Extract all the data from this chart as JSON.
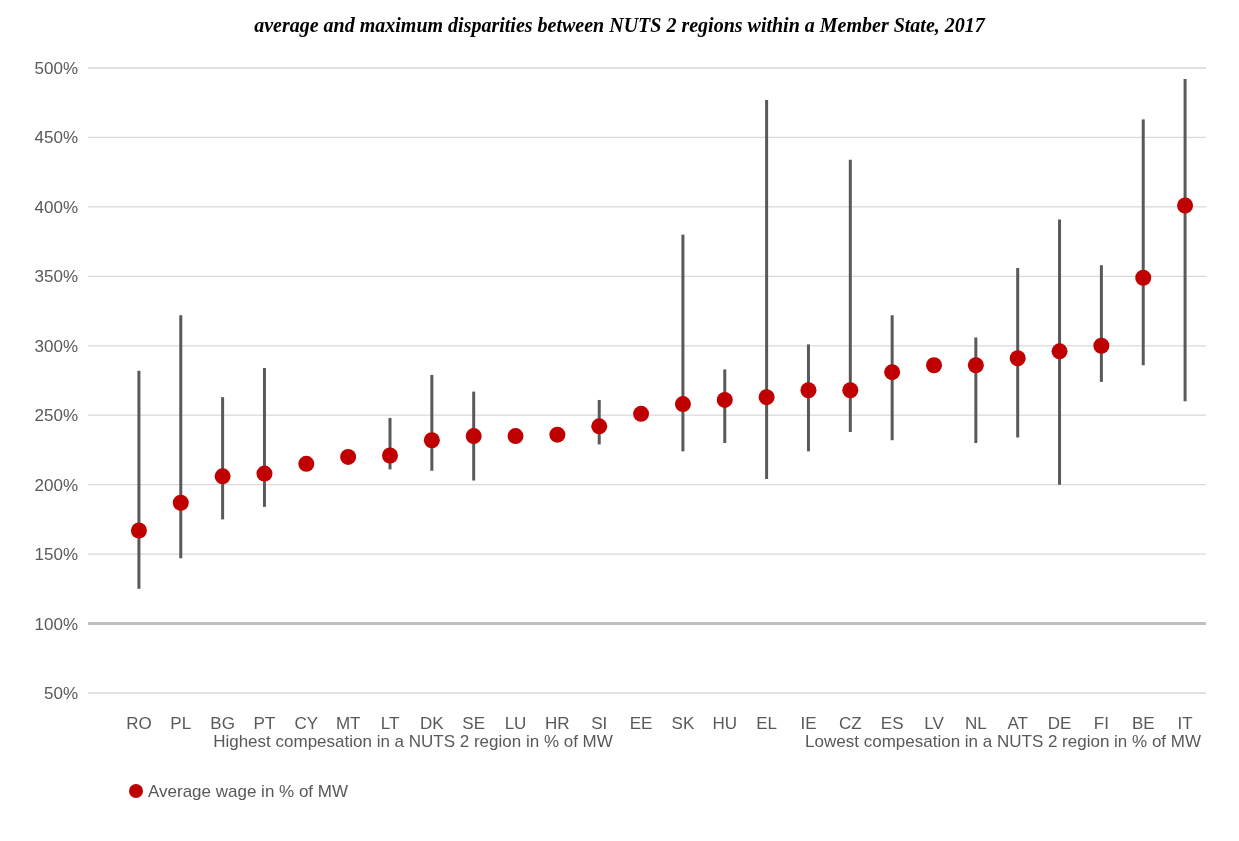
{
  "chart_data": {
    "type": "scatter",
    "title": "average and maximum disparities between NUTS 2 regions within a Member State, 2017",
    "categories": [
      "RO",
      "PL",
      "BG",
      "PT",
      "CY",
      "MT",
      "LT",
      "DK",
      "SE",
      "LU",
      "HR",
      "SI",
      "EE",
      "SK",
      "HU",
      "EL",
      "IE",
      "CZ",
      "ES",
      "LV",
      "NL",
      "AT",
      "DE",
      "FI",
      "BE",
      "IT"
    ],
    "series": [
      {
        "name": "Average wage in % of MW",
        "color": "#c00000",
        "values": [
          167,
          187,
          206,
          208,
          215,
          220,
          221,
          232,
          235,
          235,
          236,
          242,
          251,
          258,
          261,
          263,
          268,
          268,
          281,
          286,
          286,
          291,
          296,
          300,
          349,
          401
        ],
        "errors": [
          [
            125,
            282
          ],
          [
            147,
            322
          ],
          [
            175,
            263
          ],
          [
            184,
            284
          ],
          null,
          null,
          [
            211,
            248
          ],
          [
            210,
            279
          ],
          [
            203,
            267
          ],
          null,
          null,
          [
            229,
            261
          ],
          null,
          [
            224,
            380
          ],
          [
            230,
            283
          ],
          [
            204,
            477
          ],
          [
            224,
            301
          ],
          [
            238,
            434
          ],
          [
            232,
            322
          ],
          null,
          [
            230,
            306
          ],
          [
            234,
            356
          ],
          [
            200,
            391
          ],
          [
            274,
            358
          ],
          [
            286,
            463
          ],
          [
            260,
            492
          ]
        ]
      }
    ],
    "ylim": [
      50,
      500
    ],
    "yticks": [
      {
        "value": 50,
        "label": "50%"
      },
      {
        "value": 100,
        "label": "100%"
      },
      {
        "value": 150,
        "label": "150%"
      },
      {
        "value": 200,
        "label": "200%"
      },
      {
        "value": 250,
        "label": "250%"
      },
      {
        "value": 300,
        "label": "300%"
      },
      {
        "value": 350,
        "label": "350%"
      },
      {
        "value": 400,
        "label": "400%"
      },
      {
        "value": 450,
        "label": "450%"
      },
      {
        "value": 500,
        "label": "500%"
      }
    ],
    "grid": "y",
    "marker": "circle",
    "legend": "bottom",
    "ref_lines": [
      {
        "axis": "y",
        "value": 100,
        "color": "#bfbfbf"
      }
    ],
    "annotations": [
      "Highest compesation in a NUTS 2 region in % of MW",
      "Lowest compesation in a NUTS 2 region in % of MW"
    ]
  }
}
